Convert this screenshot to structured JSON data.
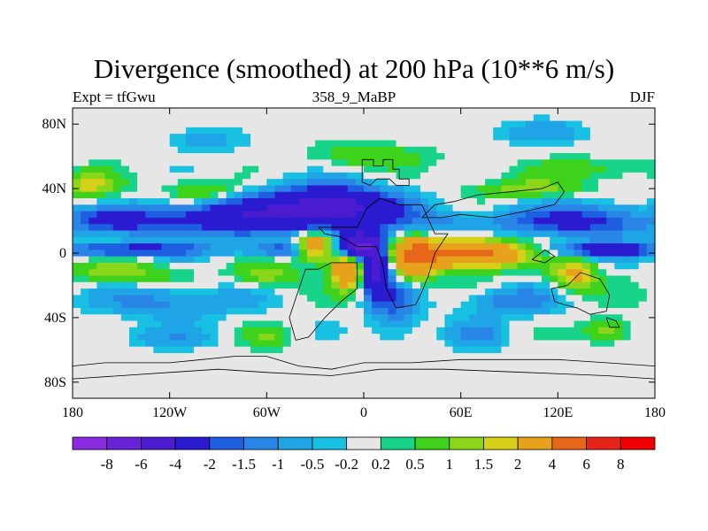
{
  "chart_data": {
    "type": "heatmap",
    "title": "Divergence (smoothed) at 200 hPa (10**6 m/s)",
    "left_label": "Expt = tfGwu",
    "center_label": "358_9_MaBP",
    "right_label": "DJF",
    "x_range": [
      -180,
      180
    ],
    "y_range": [
      -90,
      90
    ],
    "x_ticks": [
      {
        "v": -180,
        "label": "180"
      },
      {
        "v": -120,
        "label": "120W"
      },
      {
        "v": -60,
        "label": "60W"
      },
      {
        "v": 0,
        "label": "0"
      },
      {
        "v": 60,
        "label": "60E"
      },
      {
        "v": 120,
        "label": "120E"
      },
      {
        "v": 180,
        "label": "180"
      }
    ],
    "y_ticks": [
      {
        "v": 80,
        "label": "80N"
      },
      {
        "v": 40,
        "label": "40N"
      },
      {
        "v": 0,
        "label": "0"
      },
      {
        "v": -40,
        "label": "40S"
      },
      {
        "v": -80,
        "label": "80S"
      }
    ],
    "levels": [
      -8,
      -6,
      -4,
      -2,
      -1.5,
      -1,
      -0.5,
      -0.2,
      0.2,
      0.5,
      1,
      1.5,
      2,
      4,
      6,
      8
    ],
    "level_labels": [
      "-8",
      "-6",
      "-4",
      "-2",
      "-1.5",
      "-1",
      "-0.5",
      "-0.2",
      "0.2",
      "0.5",
      "1",
      "1.5",
      "2",
      "4",
      "6",
      "8"
    ],
    "colors": [
      "#8a2be2",
      "#6a22d8",
      "#4b1ccf",
      "#2a1ad0",
      "#1e5ee0",
      "#2a86e6",
      "#1fa5e6",
      "#18c0e2",
      "#e6e6e6",
      "#18d48a",
      "#3ed21c",
      "#8ad61a",
      "#d8d018",
      "#e6a21a",
      "#e6661a",
      "#e6241a",
      "#ee0000"
    ],
    "grid_lon_step": 5,
    "grid_lat_step": 4,
    "features": [
      {
        "lon": -20,
        "lat": 28,
        "a": -5.0,
        "sx": 28,
        "sy": 9
      },
      {
        "lon": -80,
        "lat": 22,
        "a": -3.0,
        "sx": 30,
        "sy": 8
      },
      {
        "lon": -150,
        "lat": 20,
        "a": -2.2,
        "sx": 28,
        "sy": 6
      },
      {
        "lon": 140,
        "lat": 20,
        "a": -2.4,
        "sx": 30,
        "sy": 7
      },
      {
        "lon": 60,
        "lat": 18,
        "a": -1.2,
        "sx": 30,
        "sy": 6
      },
      {
        "lon": -150,
        "lat": 2,
        "a": -2.8,
        "sx": 30,
        "sy": 3
      },
      {
        "lon": -50,
        "lat": 2,
        "a": -2.0,
        "sx": 22,
        "sy": 3
      },
      {
        "lon": 150,
        "lat": 2,
        "a": -2.5,
        "sx": 30,
        "sy": 3
      },
      {
        "lon": -2,
        "lat": 5,
        "a": -6.0,
        "sx": 8,
        "sy": 6
      },
      {
        "lon": 8,
        "lat": -10,
        "a": -4.5,
        "sx": 6,
        "sy": 12
      },
      {
        "lon": -60,
        "lat": -14,
        "a": 1.4,
        "sx": 14,
        "sy": 5
      },
      {
        "lon": -30,
        "lat": 4,
        "a": 4.5,
        "sx": 8,
        "sy": 6
      },
      {
        "lon": -10,
        "lat": -10,
        "a": 4.0,
        "sx": 7,
        "sy": 8
      },
      {
        "lon": 30,
        "lat": -4,
        "a": 3.5,
        "sx": 10,
        "sy": 10
      },
      {
        "lon": 65,
        "lat": 0,
        "a": 5.5,
        "sx": 22,
        "sy": 6
      },
      {
        "lon": 130,
        "lat": -14,
        "a": 2.2,
        "sx": 10,
        "sy": 7
      },
      {
        "lon": -150,
        "lat": -12,
        "a": 1.3,
        "sx": 25,
        "sy": 5
      },
      {
        "lon": -100,
        "lat": 38,
        "a": 1.4,
        "sx": 15,
        "sy": 5
      },
      {
        "lon": -170,
        "lat": 42,
        "a": 1.6,
        "sx": 14,
        "sy": 6
      },
      {
        "lon": 100,
        "lat": 40,
        "a": 1.2,
        "sx": 25,
        "sy": 4
      },
      {
        "lon": 140,
        "lat": 52,
        "a": 0.8,
        "sx": 30,
        "sy": 5
      },
      {
        "lon": 5,
        "lat": 60,
        "a": 0.9,
        "sx": 25,
        "sy": 6
      },
      {
        "lon": 20,
        "lat": -30,
        "a": -1.5,
        "sx": 10,
        "sy": 15
      },
      {
        "lon": 90,
        "lat": -30,
        "a": -1.4,
        "sx": 20,
        "sy": 6
      },
      {
        "lon": -120,
        "lat": -30,
        "a": -1.3,
        "sx": 30,
        "sy": 7
      },
      {
        "lon": 70,
        "lat": -50,
        "a": -1.2,
        "sx": 12,
        "sy": 6
      },
      {
        "lon": -60,
        "lat": -52,
        "a": 1.0,
        "sx": 10,
        "sy": 5
      },
      {
        "lon": -120,
        "lat": -52,
        "a": -0.8,
        "sx": 20,
        "sy": 5
      },
      {
        "lon": 150,
        "lat": -48,
        "a": 1.5,
        "sx": 10,
        "sy": 5
      },
      {
        "lon": 110,
        "lat": 75,
        "a": -0.9,
        "sx": 20,
        "sy": 5
      },
      {
        "lon": -100,
        "lat": 70,
        "a": -0.9,
        "sx": 15,
        "sy": 5
      }
    ],
    "coastlines": [
      [
        [
          -1,
          58
        ],
        [
          6,
          58
        ],
        [
          6,
          54
        ],
        [
          12,
          54
        ],
        [
          12,
          58
        ],
        [
          18,
          58
        ],
        [
          18,
          52
        ],
        [
          22,
          52
        ],
        [
          22,
          46
        ],
        [
          28,
          46
        ],
        [
          28,
          42
        ],
        [
          20,
          42
        ],
        [
          16,
          46
        ],
        [
          8,
          46
        ],
        [
          4,
          42
        ],
        [
          -1,
          44
        ],
        [
          -1,
          58
        ]
      ],
      [
        [
          -28,
          16
        ],
        [
          -4,
          16
        ],
        [
          2,
          28
        ],
        [
          10,
          34
        ],
        [
          22,
          30
        ],
        [
          36,
          30
        ],
        [
          44,
          12
        ],
        [
          52,
          12
        ],
        [
          44,
          0
        ],
        [
          40,
          -14
        ],
        [
          36,
          -24
        ],
        [
          32,
          -32
        ],
        [
          20,
          -34
        ],
        [
          14,
          -22
        ],
        [
          12,
          -8
        ],
        [
          8,
          4
        ],
        [
          -4,
          4
        ],
        [
          -14,
          10
        ],
        [
          -24,
          12
        ],
        [
          -28,
          16
        ]
      ],
      [
        [
          -28,
          -10
        ],
        [
          -20,
          -6
        ],
        [
          -4,
          -6
        ],
        [
          -4,
          -22
        ],
        [
          -14,
          -30
        ],
        [
          -24,
          -40
        ],
        [
          -34,
          -52
        ],
        [
          -42,
          -54
        ],
        [
          -46,
          -40
        ],
        [
          -42,
          -28
        ],
        [
          -36,
          -10
        ],
        [
          -28,
          -10
        ]
      ],
      [
        [
          36,
          22
        ],
        [
          48,
          22
        ],
        [
          60,
          24
        ],
        [
          80,
          22
        ],
        [
          100,
          26
        ],
        [
          118,
          30
        ],
        [
          124,
          38
        ],
        [
          120,
          44
        ],
        [
          110,
          40
        ],
        [
          90,
          38
        ],
        [
          70,
          36
        ],
        [
          56,
          32
        ],
        [
          44,
          30
        ],
        [
          36,
          22
        ]
      ],
      [
        [
          104,
          -4
        ],
        [
          112,
          -6
        ],
        [
          118,
          -2
        ],
        [
          112,
          2
        ],
        [
          104,
          -4
        ]
      ],
      [
        [
          126,
          -20
        ],
        [
          134,
          -12
        ],
        [
          146,
          -16
        ],
        [
          152,
          -26
        ],
        [
          150,
          -36
        ],
        [
          140,
          -38
        ],
        [
          132,
          -34
        ],
        [
          124,
          -32
        ],
        [
          118,
          -30
        ],
        [
          116,
          -22
        ],
        [
          126,
          -20
        ]
      ],
      [
        [
          150,
          -40
        ],
        [
          156,
          -42
        ],
        [
          158,
          -46
        ],
        [
          152,
          -46
        ],
        [
          150,
          -40
        ]
      ],
      [
        [
          -180,
          -70
        ],
        [
          -160,
          -68
        ],
        [
          -120,
          -68
        ],
        [
          -100,
          -66
        ],
        [
          -80,
          -64
        ],
        [
          -60,
          -64
        ],
        [
          -40,
          -70
        ],
        [
          -20,
          -72
        ],
        [
          0,
          -68
        ],
        [
          30,
          -68
        ],
        [
          60,
          -66
        ],
        [
          90,
          -66
        ],
        [
          120,
          -66
        ],
        [
          150,
          -68
        ],
        [
          180,
          -70
        ]
      ],
      [
        [
          -180,
          -78
        ],
        [
          -150,
          -76
        ],
        [
          -120,
          -74
        ],
        [
          -90,
          -72
        ],
        [
          -60,
          -74
        ],
        [
          -20,
          -76
        ],
        [
          10,
          -72
        ],
        [
          50,
          -72
        ],
        [
          100,
          -74
        ],
        [
          150,
          -76
        ],
        [
          180,
          -78
        ]
      ]
    ]
  }
}
